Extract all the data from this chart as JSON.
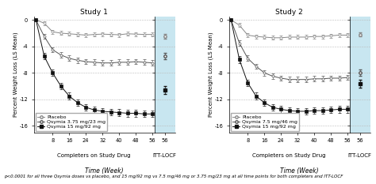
{
  "study1_title": "Study 1",
  "study2_title": "Study 2",
  "ylabel": "Percent Weight Loss (LS Mean)",
  "xlabel": "Time (Week)",
  "footnote": "p<0.0001 for all three Qsymia doses vs placebo, and 15 mg/92 mg vs 7.5 mg/46 mg or 3.75 mg/23 mg at all time points for both completers and ITT-LOCF",
  "study1": {
    "x_main": [
      0,
      4,
      8,
      12,
      16,
      20,
      24,
      28,
      32,
      36,
      40,
      44,
      48,
      52,
      56
    ],
    "placebo": [
      0,
      -0.5,
      -1.8,
      -2.0,
      -2.1,
      -2.2,
      -2.3,
      -2.2,
      -2.15,
      -2.2,
      -2.25,
      -2.1,
      -2.15,
      -2.2,
      -2.2
    ],
    "placebo_err": [
      0.0,
      0.3,
      0.3,
      0.3,
      0.3,
      0.3,
      0.3,
      0.3,
      0.3,
      0.3,
      0.3,
      0.3,
      0.3,
      0.3,
      0.3
    ],
    "q375": [
      0,
      -2.5,
      -4.5,
      -5.3,
      -5.8,
      -6.1,
      -6.3,
      -6.4,
      -6.5,
      -6.5,
      -6.4,
      -6.4,
      -6.3,
      -6.4,
      -6.5
    ],
    "q375_err": [
      0.0,
      0.4,
      0.4,
      0.4,
      0.4,
      0.4,
      0.4,
      0.4,
      0.4,
      0.4,
      0.4,
      0.4,
      0.4,
      0.4,
      0.4
    ],
    "q15": [
      0,
      -5.5,
      -8.0,
      -10.0,
      -11.5,
      -12.5,
      -13.2,
      -13.6,
      -13.8,
      -13.9,
      -14.0,
      -14.1,
      -14.1,
      -14.2,
      -14.2
    ],
    "q15_err": [
      0.0,
      0.5,
      0.5,
      0.5,
      0.5,
      0.5,
      0.5,
      0.5,
      0.5,
      0.5,
      0.5,
      0.5,
      0.5,
      0.5,
      0.5
    ],
    "placebo_itt": -2.5,
    "placebo_itt_err": 0.35,
    "q375_itt": -5.5,
    "q375_itt_err": 0.5,
    "q15_itt": -10.6,
    "q15_itt_err": 0.6,
    "legend1": "Placebo",
    "legend2": "Qsymia 3.75 mg/23 mg",
    "legend3": "Qsymia 15 mg/92 mg"
  },
  "study2": {
    "x_main": [
      0,
      4,
      8,
      12,
      16,
      20,
      24,
      28,
      32,
      36,
      40,
      44,
      48,
      52,
      56
    ],
    "placebo": [
      0,
      -0.8,
      -2.3,
      -2.5,
      -2.6,
      -2.7,
      -2.7,
      -2.6,
      -2.6,
      -2.6,
      -2.5,
      -2.5,
      -2.4,
      -2.3,
      -2.3
    ],
    "placebo_err": [
      0.0,
      0.3,
      0.3,
      0.3,
      0.3,
      0.3,
      0.3,
      0.3,
      0.3,
      0.3,
      0.3,
      0.3,
      0.3,
      0.3,
      0.3
    ],
    "q75": [
      0,
      -3.5,
      -5.8,
      -7.0,
      -8.0,
      -8.5,
      -8.8,
      -9.0,
      -9.0,
      -9.0,
      -8.9,
      -8.9,
      -8.8,
      -8.8,
      -8.7
    ],
    "q75_err": [
      0.0,
      0.4,
      0.4,
      0.4,
      0.4,
      0.4,
      0.4,
      0.4,
      0.4,
      0.4,
      0.4,
      0.4,
      0.4,
      0.4,
      0.4
    ],
    "q15": [
      0,
      -6.0,
      -9.5,
      -11.5,
      -12.5,
      -13.2,
      -13.5,
      -13.7,
      -13.8,
      -13.8,
      -13.7,
      -13.7,
      -13.6,
      -13.5,
      -13.5
    ],
    "q15_err": [
      0.0,
      0.5,
      0.5,
      0.5,
      0.5,
      0.5,
      0.5,
      0.5,
      0.5,
      0.5,
      0.5,
      0.5,
      0.5,
      0.5,
      0.5
    ],
    "placebo_itt": -2.2,
    "placebo_itt_err": 0.3,
    "q75_itt": -8.0,
    "q75_itt_err": 0.5,
    "q15_itt": -9.6,
    "q15_itt_err": 0.6,
    "legend1": "Placebo",
    "legend2": "Qsymia 7.5 mg/46 mg",
    "legend3": "Qsymia 15 mg/92 mg"
  },
  "color_placebo": "#888888",
  "color_mid": "#555555",
  "color_q15": "#111111",
  "bg_shaded": "#c8e6f0",
  "grid_color": "#bbbbbb",
  "title_fontsize": 6.5,
  "axis_label_fontsize": 5.0,
  "tick_fontsize": 4.8,
  "legend_fontsize": 4.5,
  "footnote_fontsize": 4.0,
  "completers_label_fontsize": 5.0,
  "itt_label_fontsize": 5.0,
  "time_label_fontsize": 5.5,
  "xticks": [
    8,
    16,
    24,
    32,
    40,
    48,
    56
  ],
  "yticks": [
    0,
    -4,
    -8,
    -12,
    -16
  ],
  "ylim": [
    -17,
    0.5
  ],
  "xlim_main": [
    -1,
    57
  ],
  "xlim_itt": [
    57,
    62
  ],
  "itt_point_x": 59.5
}
